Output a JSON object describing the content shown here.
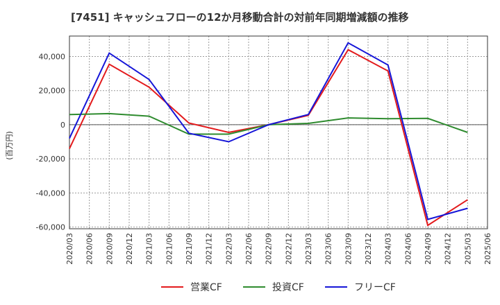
{
  "chart_data": {
    "type": "line",
    "title": "[7451]  キャッシュフローの12か月移動合計の対前年同期増減額の推移",
    "ylabel": "(百万円)",
    "xlabel": "",
    "ylim": [
      -61000,
      52000
    ],
    "yticks": [
      -60000,
      -40000,
      -20000,
      0,
      20000,
      40000
    ],
    "ytick_labels": [
      "-60,000",
      "-40,000",
      "-20,000",
      "0",
      "20,000",
      "40,000"
    ],
    "x_ticks": [
      "2020/03",
      "2020/06",
      "2020/09",
      "2020/12",
      "2021/03",
      "2021/06",
      "2021/09",
      "2021/12",
      "2022/03",
      "2022/06",
      "2022/09",
      "2022/12",
      "2023/03",
      "2023/06",
      "2023/09",
      "2023/12",
      "2024/03",
      "2024/06",
      "2024/09",
      "2024/12",
      "2025/03",
      "2025/06"
    ],
    "grid": true,
    "legend_position": "bottom",
    "series": [
      {
        "name": "営業CF",
        "color": "#e31a1c",
        "points": [
          {
            "x": "2020/03",
            "y": -14000
          },
          {
            "x": "2020/09",
            "y": 35500
          },
          {
            "x": "2021/03",
            "y": 22000
          },
          {
            "x": "2021/09",
            "y": 1000
          },
          {
            "x": "2022/03",
            "y": -4500
          },
          {
            "x": "2022/09",
            "y": 0
          },
          {
            "x": "2023/03",
            "y": 5500
          },
          {
            "x": "2023/09",
            "y": 44000
          },
          {
            "x": "2024/03",
            "y": 31500
          },
          {
            "x": "2024/09",
            "y": -59000
          },
          {
            "x": "2025/03",
            "y": -44000
          }
        ]
      },
      {
        "name": "投資CF",
        "color": "#2e8b2e",
        "points": [
          {
            "x": "2020/03",
            "y": 6000
          },
          {
            "x": "2020/09",
            "y": 6500
          },
          {
            "x": "2021/03",
            "y": 5000
          },
          {
            "x": "2021/09",
            "y": -5500
          },
          {
            "x": "2022/03",
            "y": -5500
          },
          {
            "x": "2022/09",
            "y": 0
          },
          {
            "x": "2023/03",
            "y": 800
          },
          {
            "x": "2023/09",
            "y": 4000
          },
          {
            "x": "2024/03",
            "y": 3500
          },
          {
            "x": "2024/09",
            "y": 3700
          },
          {
            "x": "2025/03",
            "y": -4500
          }
        ]
      },
      {
        "name": "フリーCF",
        "color": "#1515d8",
        "points": [
          {
            "x": "2020/03",
            "y": -8000
          },
          {
            "x": "2020/09",
            "y": 42000
          },
          {
            "x": "2021/03",
            "y": 26500
          },
          {
            "x": "2021/09",
            "y": -5000
          },
          {
            "x": "2022/03",
            "y": -10000
          },
          {
            "x": "2022/09",
            "y": 0
          },
          {
            "x": "2023/03",
            "y": 6000
          },
          {
            "x": "2023/09",
            "y": 48000
          },
          {
            "x": "2024/03",
            "y": 35000
          },
          {
            "x": "2024/09",
            "y": -55500
          },
          {
            "x": "2025/03",
            "y": -49000
          }
        ]
      }
    ]
  }
}
